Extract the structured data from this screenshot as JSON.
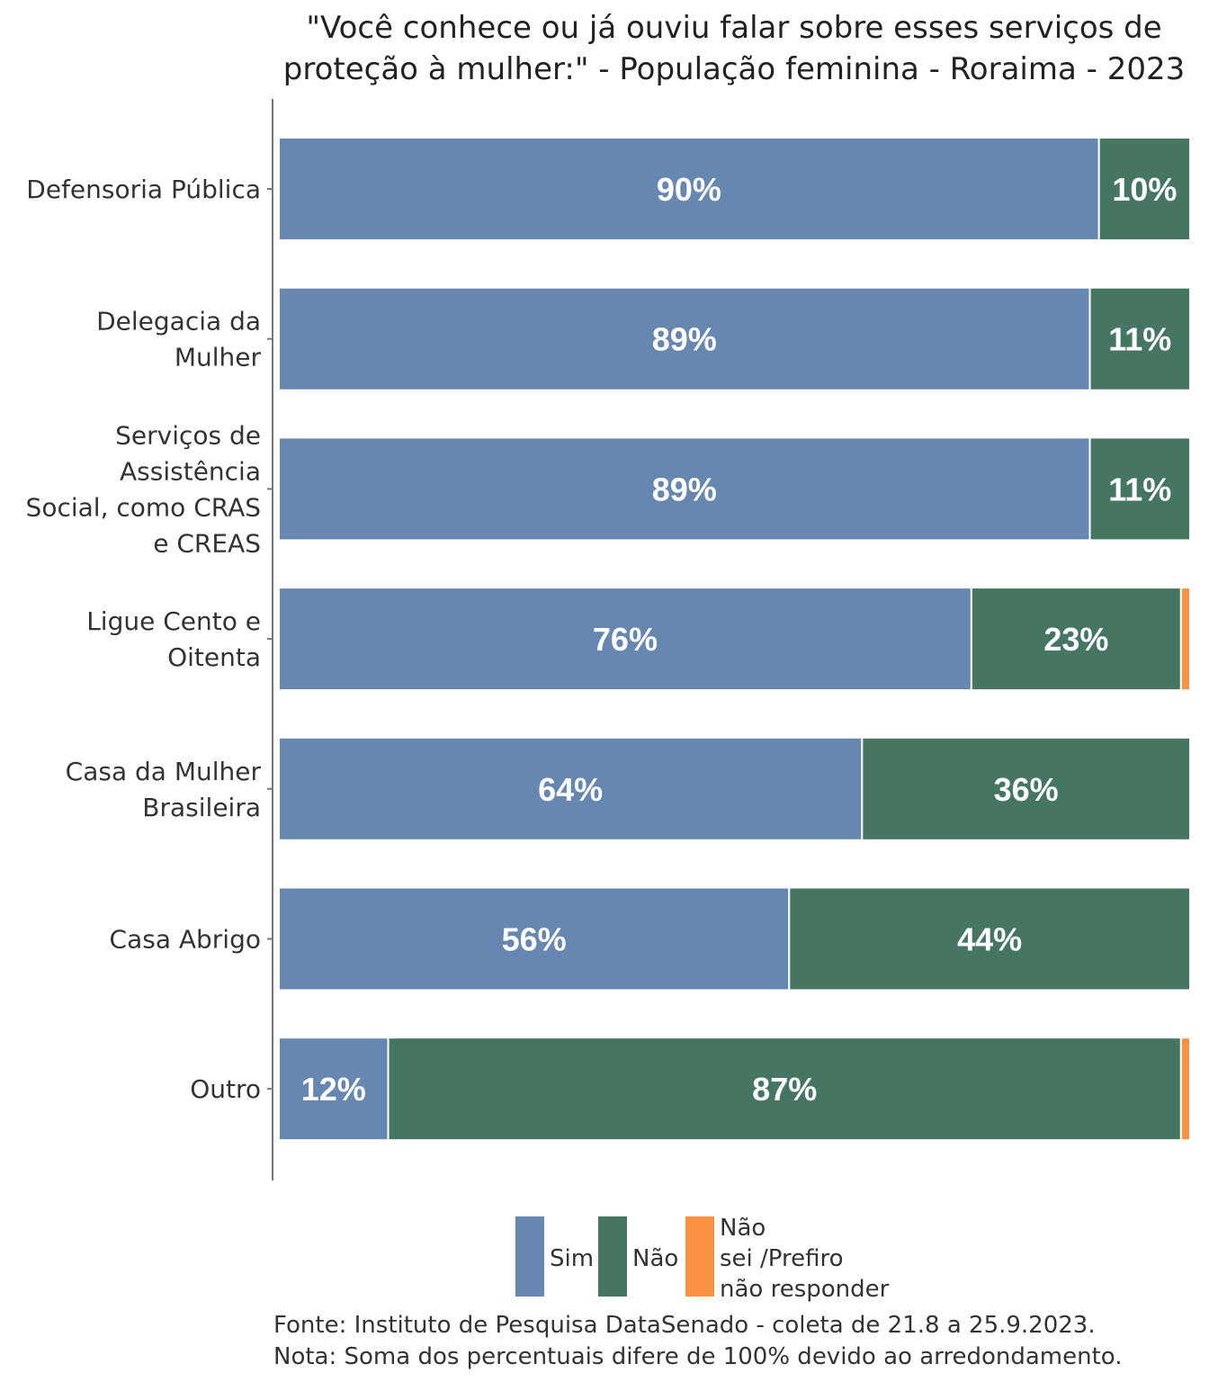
{
  "chart_data": {
    "type": "bar",
    "orientation": "horizontal",
    "stacked": true,
    "title_lines": [
      "\"Você conhece ou já ouviu falar sobre esses serviços de",
      "proteção à mulher:\" - População feminina - Roraima - 2023"
    ],
    "categories": [
      [
        "Defensoria Pública"
      ],
      [
        "Delegacia da",
        "Mulher"
      ],
      [
        "Serviços de",
        "Assistência",
        "Social, como CRAS",
        "e CREAS"
      ],
      [
        "Ligue Cento e",
        "Oitenta"
      ],
      [
        "Casa da Mulher",
        "Brasileira"
      ],
      [
        "Casa Abrigo"
      ],
      [
        "Outro"
      ]
    ],
    "series": [
      {
        "name": "Sim",
        "legend_lines": [
          "Sim"
        ],
        "color": "#6688b0",
        "values": [
          90,
          89,
          89,
          76,
          64,
          56,
          12
        ]
      },
      {
        "name": "Não",
        "legend_lines": [
          "Não"
        ],
        "color": "#447662",
        "values": [
          10,
          11,
          11,
          23,
          36,
          44,
          87
        ]
      },
      {
        "name": "Não sei /Prefiro não responder",
        "legend_lines": [
          "Não",
          "sei /Prefiro",
          "não responder"
        ],
        "color": "#f99240",
        "values": [
          0,
          0,
          0,
          1,
          0,
          0,
          1
        ]
      }
    ],
    "value_suffix": "%",
    "xlim": [
      0,
      100
    ],
    "grid": false,
    "legend_position": "bottom",
    "notes": [
      "Fonte: Instituto de Pesquisa DataSenado - coleta de 21.8 a 25.9.2023.",
      "Nota: Soma dos percentuais difere de 100% devido ao arredondamento."
    ]
  }
}
